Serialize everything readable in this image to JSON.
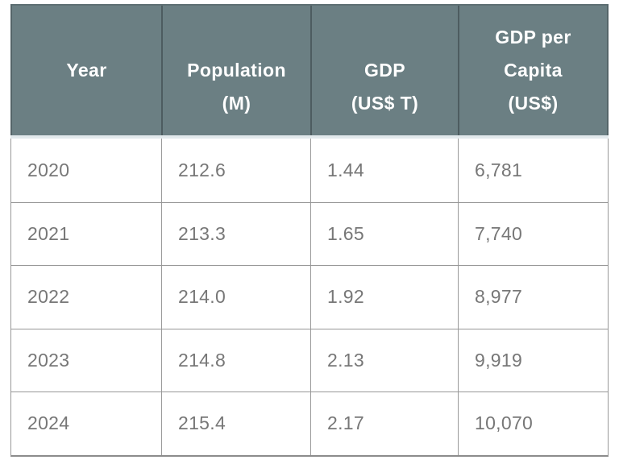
{
  "chart_data": {
    "type": "table",
    "columns": [
      "Year",
      "Population (M)",
      "GDP (US$ T)",
      "GDP per Capita (US$)"
    ],
    "rows": [
      [
        2020,
        212.6,
        1.44,
        6781
      ],
      [
        2021,
        213.3,
        1.65,
        7740
      ],
      [
        2022,
        214.0,
        1.92,
        8977
      ],
      [
        2023,
        214.8,
        2.13,
        9919
      ],
      [
        2024,
        215.4,
        2.17,
        10070
      ]
    ],
    "layout": {
      "header_position": "top",
      "grid": "on"
    }
  },
  "table": {
    "columns": [
      {
        "label": "Year",
        "lines": [
          "",
          "Year",
          ""
        ]
      },
      {
        "label": "Population (M)",
        "lines": [
          "",
          "Population",
          "(M)"
        ]
      },
      {
        "label": "GDP (US$ T)",
        "lines": [
          "",
          "GDP",
          "(US$ T)"
        ]
      },
      {
        "label": "GDP per Capita (US$)",
        "lines": [
          "GDP per",
          "Capita",
          "(US$)"
        ]
      }
    ],
    "rows": [
      [
        "2020",
        "212.6",
        "1.44",
        "6,781"
      ],
      [
        "2021",
        "213.3",
        "1.65",
        "7,740"
      ],
      [
        "2022",
        "214.0",
        "1.92",
        "8,977"
      ],
      [
        "2023",
        "214.8",
        "2.13",
        "9,919"
      ],
      [
        "2024",
        "215.4",
        "2.17",
        "10,070"
      ]
    ],
    "colors": {
      "header_bg": "#6B7F83",
      "header_text": "#FFFFFF",
      "header_divider": "#4D5C60",
      "header_gap_strip": "#E2E9EC",
      "body_text": "#777777",
      "grid_line": "#979797",
      "bottom_border": "#8C8C8C"
    }
  }
}
